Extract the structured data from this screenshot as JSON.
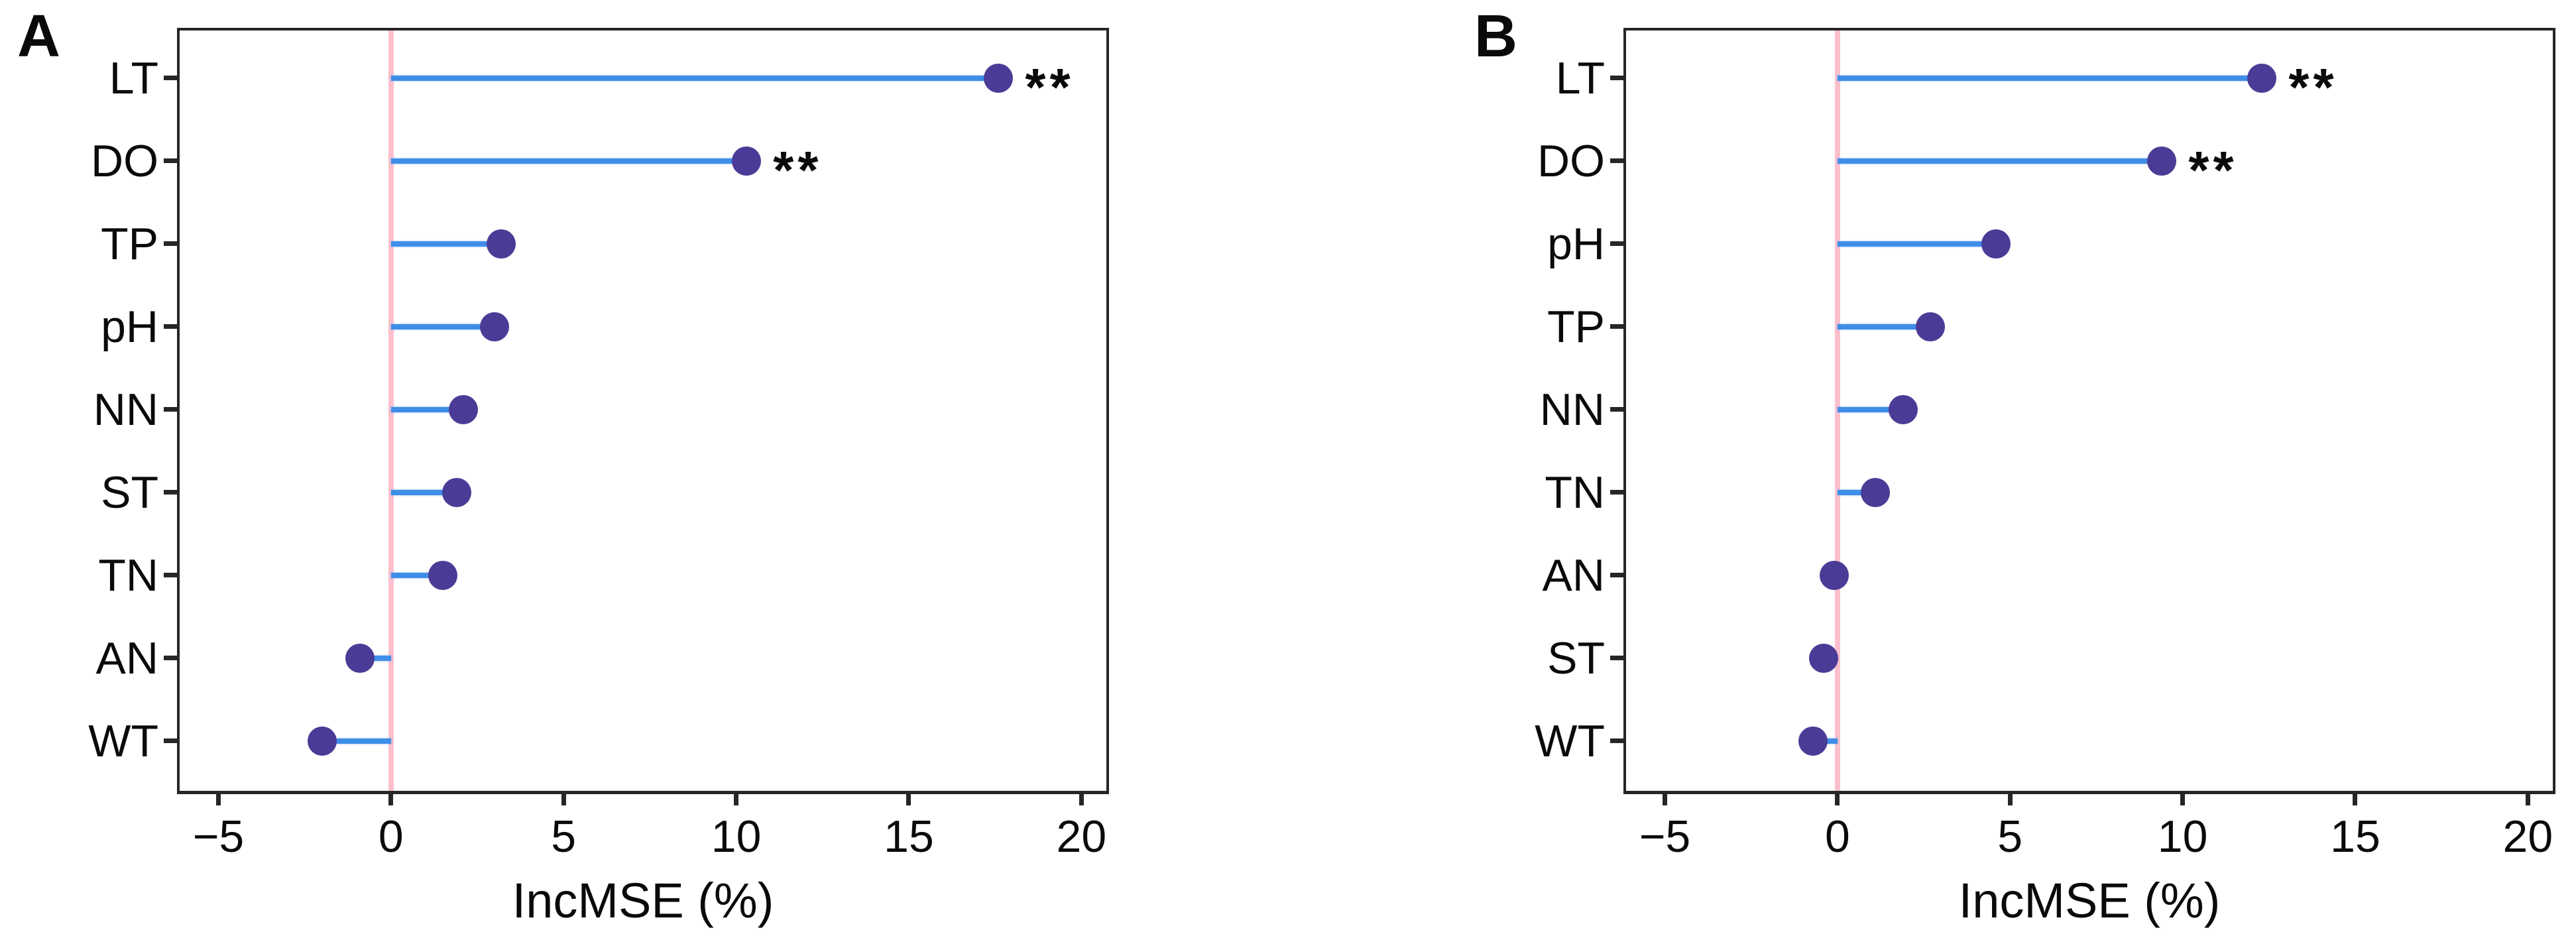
{
  "figure": {
    "panel_a_letter": "A",
    "panel_b_letter": "B",
    "colors": {
      "dot": "#4A3C96",
      "stem": "#3E8EE8",
      "zero_line": "#FBC0CD",
      "axis": "#262626",
      "text": "#0a0a0a",
      "background": "#ffffff"
    }
  },
  "chart_data": [
    {
      "type": "bar",
      "variant": "horizontal-lollipop",
      "title": "A",
      "xlabel": "IncMSE (%)",
      "ylabel": "",
      "categories": [
        "LT",
        "DO",
        "TP",
        "pH",
        "NN",
        "ST",
        "TN",
        "AN",
        "WT"
      ],
      "values": [
        17.6,
        10.3,
        3.2,
        3.0,
        2.1,
        1.9,
        1.5,
        -0.9,
        -2.0
      ],
      "significance": [
        "**",
        "**",
        "",
        "",
        "",
        "",
        "",
        "",
        ""
      ],
      "x_ticks": [
        -5,
        0,
        5,
        10,
        15,
        20
      ],
      "x_tick_labels": [
        "−5",
        "0",
        "5",
        "10",
        "15",
        "20"
      ],
      "xlim": [
        -6.2,
        20.8
      ],
      "grid": "off",
      "legend": "none",
      "zero_reference_line": 0
    },
    {
      "type": "bar",
      "variant": "horizontal-lollipop",
      "title": "B",
      "xlabel": "IncMSE (%)",
      "ylabel": "",
      "categories": [
        "LT",
        "DO",
        "pH",
        "TP",
        "NN",
        "TN",
        "AN",
        "ST",
        "WT"
      ],
      "values": [
        12.3,
        9.4,
        4.6,
        2.7,
        1.9,
        1.1,
        -0.1,
        -0.4,
        -0.7
      ],
      "significance": [
        "**",
        "**",
        "",
        "",
        "",
        "",
        "",
        "",
        ""
      ],
      "x_ticks": [
        -5,
        0,
        5,
        10,
        15,
        20
      ],
      "x_tick_labels": [
        "−5",
        "0",
        "5",
        "10",
        "15",
        "20"
      ],
      "xlim": [
        -6.2,
        20.8
      ],
      "grid": "off",
      "legend": "none",
      "zero_reference_line": 0
    }
  ]
}
